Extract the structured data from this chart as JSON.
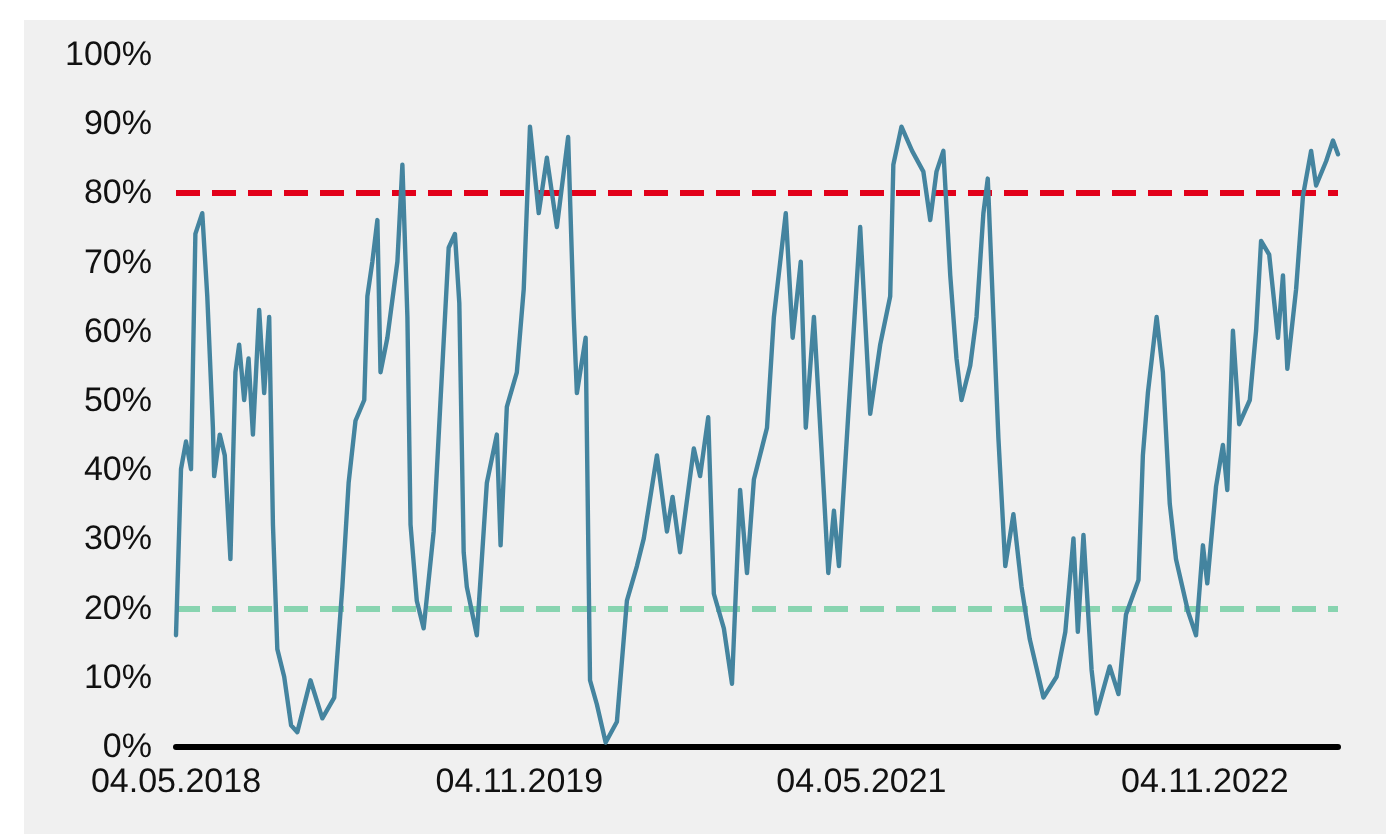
{
  "chart_data": {
    "type": "line",
    "x": [
      "2018-05-04",
      "2018-05-12",
      "2018-05-20",
      "2018-05-28",
      "2018-06-04",
      "2018-06-15",
      "2018-06-23",
      "2018-07-02",
      "2018-07-04",
      "2018-07-13",
      "2018-07-21",
      "2018-07-30",
      "2018-08-07",
      "2018-08-13",
      "2018-08-21",
      "2018-08-28",
      "2018-09-04",
      "2018-09-14",
      "2018-09-22",
      "2018-09-30",
      "2018-10-06",
      "2018-10-13",
      "2018-10-24",
      "2018-11-04",
      "2018-11-14",
      "2018-12-05",
      "2018-12-24",
      "2019-01-12",
      "2019-01-25",
      "2019-02-04",
      "2019-02-15",
      "2019-03-01",
      "2019-03-06",
      "2019-03-14",
      "2019-03-22",
      "2019-03-27",
      "2019-04-07",
      "2019-04-23",
      "2019-05-01",
      "2019-05-09",
      "2019-05-14",
      "2019-05-24",
      "2019-06-04",
      "2019-06-20",
      "2019-07-01",
      "2019-07-14",
      "2019-07-24",
      "2019-07-31",
      "2019-08-07",
      "2019-08-12",
      "2019-08-28",
      "2019-09-13",
      "2019-09-29",
      "2019-10-05",
      "2019-10-15",
      "2019-10-31",
      "2019-11-11",
      "2019-11-21",
      "2019-12-05",
      "2019-12-18",
      "2020-01-03",
      "2020-01-21",
      "2020-01-30",
      "2020-02-04",
      "2020-02-18",
      "2020-02-25",
      "2020-03-07",
      "2020-03-21",
      "2020-04-08",
      "2020-04-24",
      "2020-05-10",
      "2020-05-21",
      "2020-06-11",
      "2020-06-27",
      "2020-07-06",
      "2020-07-18",
      "2020-08-09",
      "2020-08-19",
      "2020-09-01",
      "2020-09-10",
      "2020-09-26",
      "2020-10-09",
      "2020-10-22",
      "2020-11-02",
      "2020-11-13",
      "2020-12-04",
      "2020-12-15",
      "2021-01-03",
      "2021-01-14",
      "2021-01-27",
      "2021-02-04",
      "2021-02-17",
      "2021-03-01",
      "2021-03-12",
      "2021-03-21",
      "2021-03-29",
      "2021-04-13",
      "2021-04-23",
      "2021-05-02",
      "2021-05-18",
      "2021-06-03",
      "2021-06-19",
      "2021-06-24",
      "2021-07-07",
      "2021-07-24",
      "2021-08-11",
      "2021-08-22",
      "2021-09-01",
      "2021-09-12",
      "2021-09-23",
      "2021-10-03",
      "2021-10-11",
      "2021-10-25",
      "2021-11-04",
      "2021-11-15",
      "2021-11-22",
      "2021-12-01",
      "2021-12-09",
      "2021-12-20",
      "2022-01-02",
      "2022-01-15",
      "2022-01-28",
      "2022-02-19",
      "2022-03-12",
      "2022-03-26",
      "2022-04-08",
      "2022-04-15",
      "2022-04-24",
      "2022-05-07",
      "2022-05-15",
      "2022-06-05",
      "2022-06-19",
      "2022-07-01",
      "2022-07-21",
      "2022-07-28",
      "2022-08-05",
      "2022-08-19",
      "2022-08-29",
      "2022-09-09",
      "2022-09-19",
      "2022-10-08",
      "2022-10-21",
      "2022-11-01",
      "2022-11-08",
      "2022-11-22",
      "2022-12-03",
      "2022-12-10",
      "2022-12-19",
      "2022-12-29",
      "2023-01-15",
      "2023-01-25",
      "2023-02-02",
      "2023-02-15",
      "2023-03-01",
      "2023-03-09",
      "2023-03-16",
      "2023-03-30",
      "2023-04-10",
      "2023-04-23",
      "2023-05-01",
      "2023-05-17",
      "2023-05-28",
      "2023-06-05"
    ],
    "series": [
      {
        "color": "#44849f",
        "values": [
          16,
          40,
          44,
          40,
          74,
          77,
          65,
          46,
          39,
          45,
          42,
          27,
          54,
          58,
          50,
          56,
          45,
          63,
          51,
          62,
          32,
          14,
          10,
          3,
          2,
          9.5,
          4,
          7,
          23,
          38,
          47,
          50,
          65,
          70,
          76,
          54,
          59,
          70,
          84,
          62,
          32,
          21,
          17,
          31,
          50,
          72,
          74,
          64,
          28,
          23,
          16,
          38,
          45,
          29,
          49,
          54,
          66,
          89.5,
          77,
          85,
          75,
          88,
          62,
          51,
          59,
          9.5,
          6,
          0.5,
          3.5,
          21,
          26,
          30,
          42,
          31,
          36,
          28,
          43,
          39,
          47.5,
          22,
          17,
          9,
          37,
          25,
          38.5,
          46,
          62,
          77,
          59,
          70,
          46,
          62,
          43,
          25,
          34,
          26,
          48,
          62,
          75,
          48,
          58,
          65,
          84,
          89.5,
          86,
          83,
          76,
          83,
          86,
          68,
          56,
          50,
          55,
          62,
          77,
          82,
          62,
          44.5,
          26,
          33.5,
          23,
          15.5,
          7,
          10,
          16.5,
          30,
          16.5,
          30.5,
          11,
          4.7,
          11.5,
          7.5,
          19,
          24,
          42,
          51,
          62,
          54,
          35,
          27,
          19.5,
          16,
          29,
          23.5,
          37.5,
          43.5,
          37,
          60,
          46.5,
          50,
          60,
          73,
          71,
          59,
          68,
          54.5,
          66,
          79.5,
          86,
          81,
          84.5,
          87.5,
          85.5
        ]
      }
    ],
    "xlim": [
      "2018-05-04",
      "2023-06-05"
    ],
    "xticks": [
      {
        "value": "2018-05-04",
        "label": "04.05.2018"
      },
      {
        "value": "2019-11-04",
        "label": "04.11.2019"
      },
      {
        "value": "2021-05-04",
        "label": "04.05.2021"
      },
      {
        "value": "2022-11-04",
        "label": "04.11.2022"
      }
    ],
    "ylim": [
      0,
      100
    ],
    "yticks": [
      {
        "value": 0,
        "label": "0%"
      },
      {
        "value": 10,
        "label": "10%"
      },
      {
        "value": 20,
        "label": "20%"
      },
      {
        "value": 30,
        "label": "30%"
      },
      {
        "value": 40,
        "label": "40%"
      },
      {
        "value": 50,
        "label": "50%"
      },
      {
        "value": 60,
        "label": "60%"
      },
      {
        "value": 70,
        "label": "70%"
      },
      {
        "value": 80,
        "label": "80%"
      },
      {
        "value": 90,
        "label": "90%"
      },
      {
        "value": 100,
        "label": "100%"
      }
    ],
    "ref_lines": [
      {
        "axis": "y",
        "value": 80,
        "color": "#e2001a",
        "line_style": "dashed"
      },
      {
        "axis": "y",
        "value": 20,
        "color": "#88d4b0",
        "line_style": "dashed"
      }
    ],
    "grid": false,
    "marker": "none",
    "line_style": "solid"
  }
}
